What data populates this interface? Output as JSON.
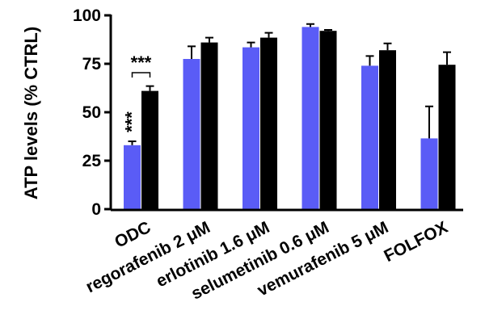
{
  "chart_data": {
    "type": "bar",
    "ylabel": "ATP levels (% CTRL)",
    "ylim": [
      0,
      100
    ],
    "yticks": [
      0,
      25,
      50,
      75,
      100
    ],
    "categories": [
      "ODC",
      "regorafenib 2 μM",
      "erlotinib 1.6 μM",
      "selumetinib 0.6 μM",
      "vemurafenib 5 μM",
      "FOLFOX"
    ],
    "series": [
      {
        "color": "#5a5cf6",
        "values": [
          33,
          77.5,
          83.5,
          94,
          74,
          36.5
        ],
        "errors": [
          2,
          6.5,
          2.5,
          1.5,
          5,
          16.5
        ]
      },
      {
        "color": "#000000",
        "values": [
          61,
          86,
          88.5,
          92,
          82,
          74.5
        ],
        "errors": [
          2.5,
          2.5,
          2.5,
          0.5,
          3.5,
          6.5
        ]
      }
    ],
    "annotations": {
      "bar_significance": "***",
      "pair_significance": "***"
    }
  }
}
